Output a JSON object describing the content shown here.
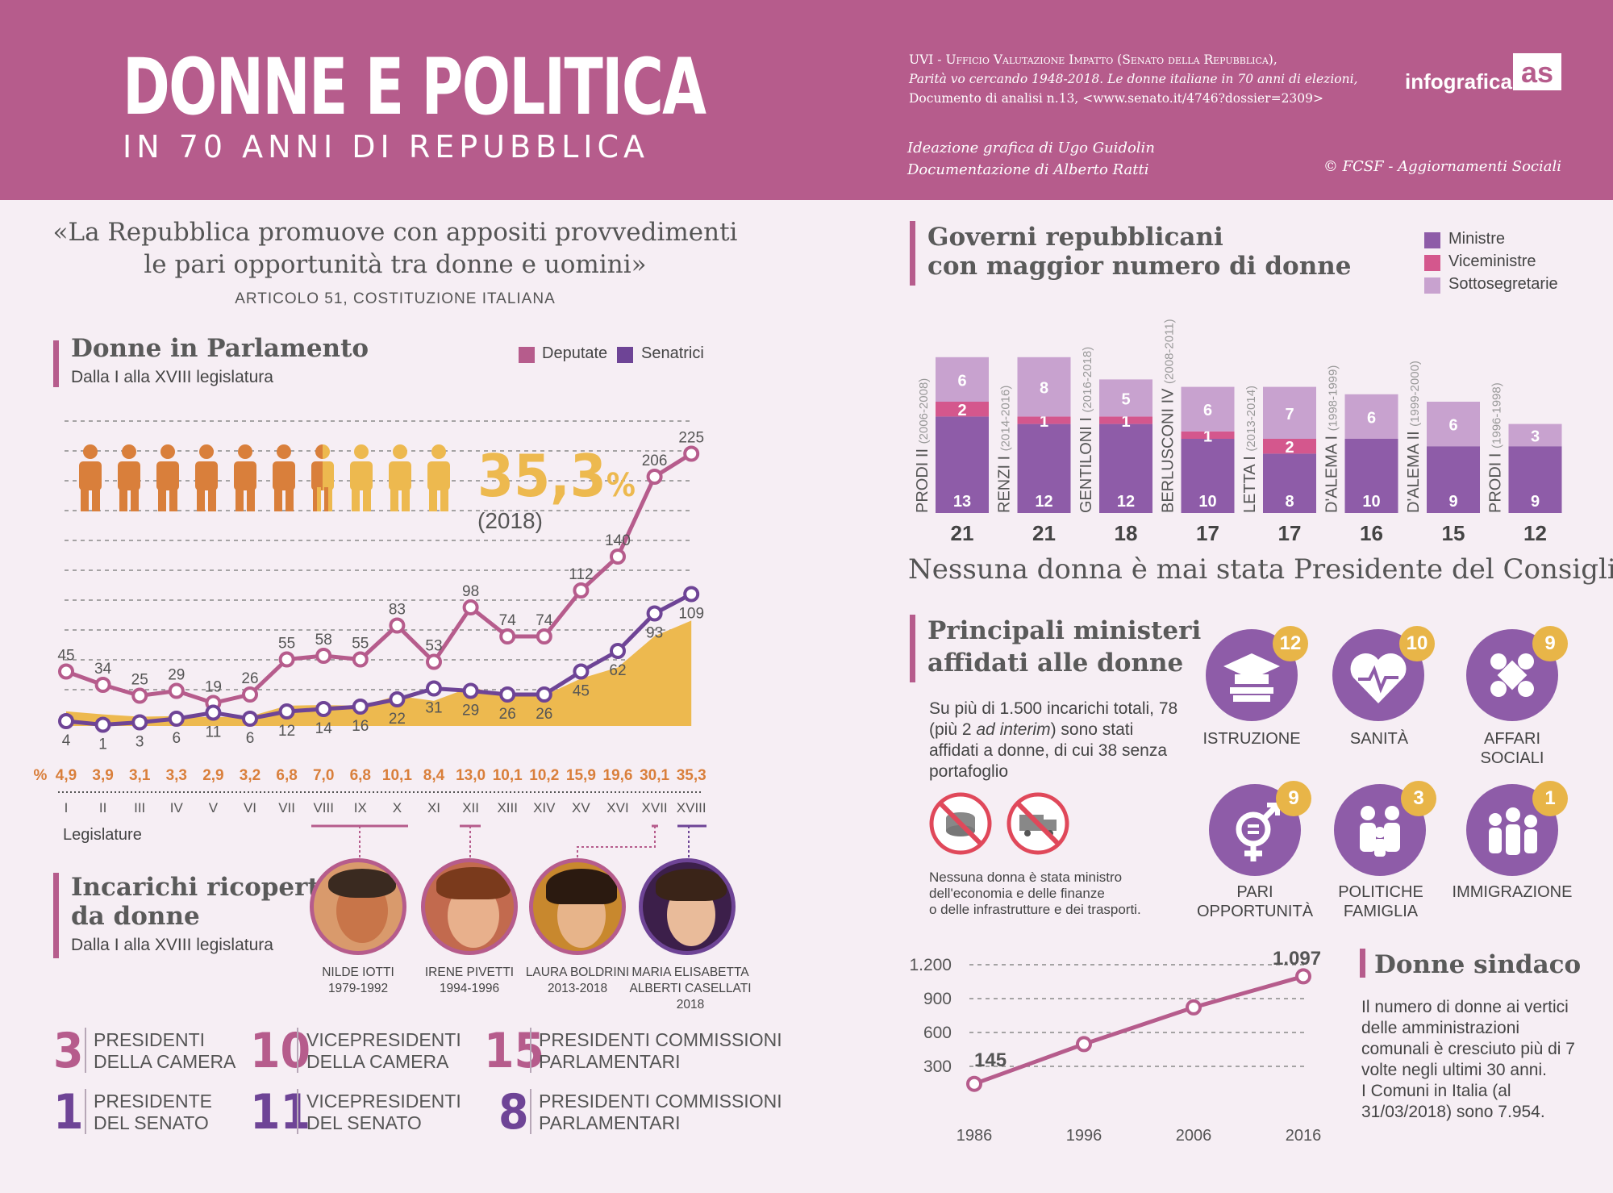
{
  "header": {
    "title": "DONNE E POLITICA",
    "subtitle": "IN 70 ANNI DI REPUBBLICA",
    "source_line1": "UVI - Ufficio Valutazione Impatto (Senato della Repubblica),",
    "source_line2": "Parità vo cercando 1948-2018. Le donne italiane in 70 anni di elezioni,",
    "source_line3": "Documento di analisi n.13, <www.senato.it/4746?dossier=2309>",
    "credit1": "Ideazione grafica di Ugo Guidolin",
    "credit2": "Documentazione di Alberto Ratti",
    "copyright": "© FCSF - Aggiornamenti Sociali",
    "brand": "infografica"
  },
  "quote": {
    "line1": "«La Repubblica promuove con appositi provvedimenti",
    "line2": "le pari opportunità tra donne e uomini»",
    "source": "ARTICOLO 51, COSTITUZIONE ITALIANA"
  },
  "parliament": {
    "title": "Donne in Parlamento",
    "subtitle": "Dalla I alla XVIII legislatura",
    "legend_deputate": "Deputate",
    "legend_senatrici": "Senatrici",
    "big_pct": "35,3",
    "big_pct_sign": "%",
    "big_year": "(2018)",
    "pct_label": "%",
    "axis_label": "Legislature"
  },
  "chart_data": [
    {
      "type": "line",
      "categories": [
        "I",
        "II",
        "III",
        "IV",
        "V",
        "VI",
        "VII",
        "VIII",
        "IX",
        "X",
        "XI",
        "XII",
        "XIII",
        "XIV",
        "XV",
        "XVI",
        "XVII",
        "XVIII"
      ],
      "series": [
        {
          "name": "Deputate",
          "values": [
            45,
            34,
            25,
            29,
            19,
            26,
            55,
            58,
            55,
            83,
            53,
            98,
            74,
            74,
            112,
            140,
            206,
            225
          ]
        },
        {
          "name": "Senatrici",
          "values": [
            4,
            1,
            3,
            6,
            11,
            6,
            12,
            14,
            16,
            22,
            31,
            29,
            26,
            26,
            45,
            62,
            93,
            109
          ]
        }
      ],
      "percent_row": [
        "4,9",
        "3,9",
        "3,1",
        "3,3",
        "2,9",
        "3,2",
        "6,8",
        "7,0",
        "6,8",
        "10,1",
        "8,4",
        "13,0",
        "10,1",
        "10,2",
        "15,9",
        "19,6",
        "30,1",
        "35,3"
      ],
      "xlabel": "Legislature"
    },
    {
      "type": "bar",
      "title": "Governi repubblicani con maggior numero di donne",
      "categories": [
        "PRODI II",
        "RENZI I",
        "GENTILONI I",
        "BERLUSCONI IV",
        "LETTA I",
        "D'ALEMA I",
        "D'ALEMA II",
        "PRODI I"
      ],
      "periods": [
        "(2006-2008)",
        "(2014-2016)",
        "(2016-2018)",
        "(2008-2011)",
        "(2013-2014)",
        "(1998-1999)",
        "(1999-2000)",
        "(1996-1998)"
      ],
      "series": [
        {
          "name": "Ministre",
          "values": [
            13,
            12,
            12,
            10,
            8,
            10,
            9,
            9
          ]
        },
        {
          "name": "Viceministre",
          "values": [
            2,
            1,
            1,
            1,
            2,
            0,
            0,
            0
          ]
        },
        {
          "name": "Sottosegretarie",
          "values": [
            6,
            8,
            5,
            6,
            7,
            6,
            6,
            3
          ]
        }
      ],
      "totals": [
        21,
        21,
        18,
        17,
        17,
        16,
        15,
        12
      ]
    },
    {
      "type": "line",
      "title": "Donne sindaco",
      "x": [
        "1986",
        "1996",
        "2006",
        "2016"
      ],
      "values": [
        145,
        null,
        null,
        1097
      ],
      "labels": [
        "145",
        "1.097"
      ],
      "y_ticks": [
        "1.200",
        "900",
        "600",
        "300"
      ]
    }
  ],
  "governments": {
    "title1": "Governi repubblicani",
    "title2": "con maggior numero di donne",
    "legend": [
      "Ministre",
      "Viceministre",
      "Sottosegretarie"
    ],
    "note": "Nessuna donna è mai stata Presidente del Consiglio"
  },
  "ministries": {
    "title1": "Principali ministeri",
    "title2": "affidati alle donne",
    "desc1": "Su più di 1.500 incarichi totali, 78",
    "desc2_a": "(più 2 ",
    "desc2_b": "ad interim",
    "desc2_c": ") sono stati",
    "desc3": "affidati a donne, di cui 38 senza",
    "desc4": "portafoglio",
    "note1": "Nessuna donna è stata ministro",
    "note2": "dell'economia e delle finanze",
    "note3": "o delle infrastrutture e dei trasporti.",
    "items": [
      {
        "label": "ISTRUZIONE",
        "count": "12"
      },
      {
        "label": "SANITÀ",
        "count": "10"
      },
      {
        "label": "AFFARI SOCIALI",
        "count": "9"
      },
      {
        "label1": "PARI",
        "label2": "OPPORTUNITÀ",
        "count": "9"
      },
      {
        "label1": "POLITICHE",
        "label2": "FAMIGLIA",
        "count": "3"
      },
      {
        "label": "IMMIGRAZIONE",
        "count": "1"
      }
    ]
  },
  "offices": {
    "title1": "Incarichi ricoperti",
    "title2": "da donne",
    "subtitle": "Dalla I alla XVIII legislatura",
    "people": [
      {
        "name": "NILDE IOTTI",
        "years": "1979-1992"
      },
      {
        "name": "IRENE PIVETTI",
        "years": "1994-1996"
      },
      {
        "name": "LAURA BOLDRINI",
        "years": "2013-2018"
      },
      {
        "name1": "MARIA ELISABETTA",
        "name2": "ALBERTI CASELLATI",
        "years": "2018"
      }
    ],
    "stats": [
      {
        "n": "3",
        "l1": "PRESIDENTI",
        "l2": "DELLA CAMERA"
      },
      {
        "n": "10",
        "l1": "VICEPRESIDENTI",
        "l2": "DELLA CAMERA"
      },
      {
        "n": "15",
        "l1": "PRESIDENTI COMMISSIONI",
        "l2": "PARLAMENTARI"
      },
      {
        "n": "1",
        "l1": "PRESIDENTE",
        "l2": "DEL SENATO"
      },
      {
        "n": "11",
        "l1": "VICEPRESIDENTI",
        "l2": "DEL SENATO"
      },
      {
        "n": "8",
        "l1": "PRESIDENTI COMMISSIONI",
        "l2": "PARLAMENTARI"
      }
    ]
  },
  "mayors": {
    "title": "Donne sindaco",
    "text1": "Il numero di donne ai vertici",
    "text2": "delle amministrazioni",
    "text3": "comunali è cresciuto più di 7",
    "text4": "volte negli ultimi 30 anni.",
    "text5": "I Comuni in Italia (al",
    "text6": "31/03/2018) sono 7.954."
  },
  "colors": {
    "header": "#b65c8c",
    "deputate": "#b65c8c",
    "senatrici": "#6e4496",
    "ministre": "#8e5ca8",
    "viceministre": "#d4578d",
    "sottosegretarie": "#c8a2cf",
    "orange": "#d97f3b",
    "yellow": "#edb94f"
  }
}
